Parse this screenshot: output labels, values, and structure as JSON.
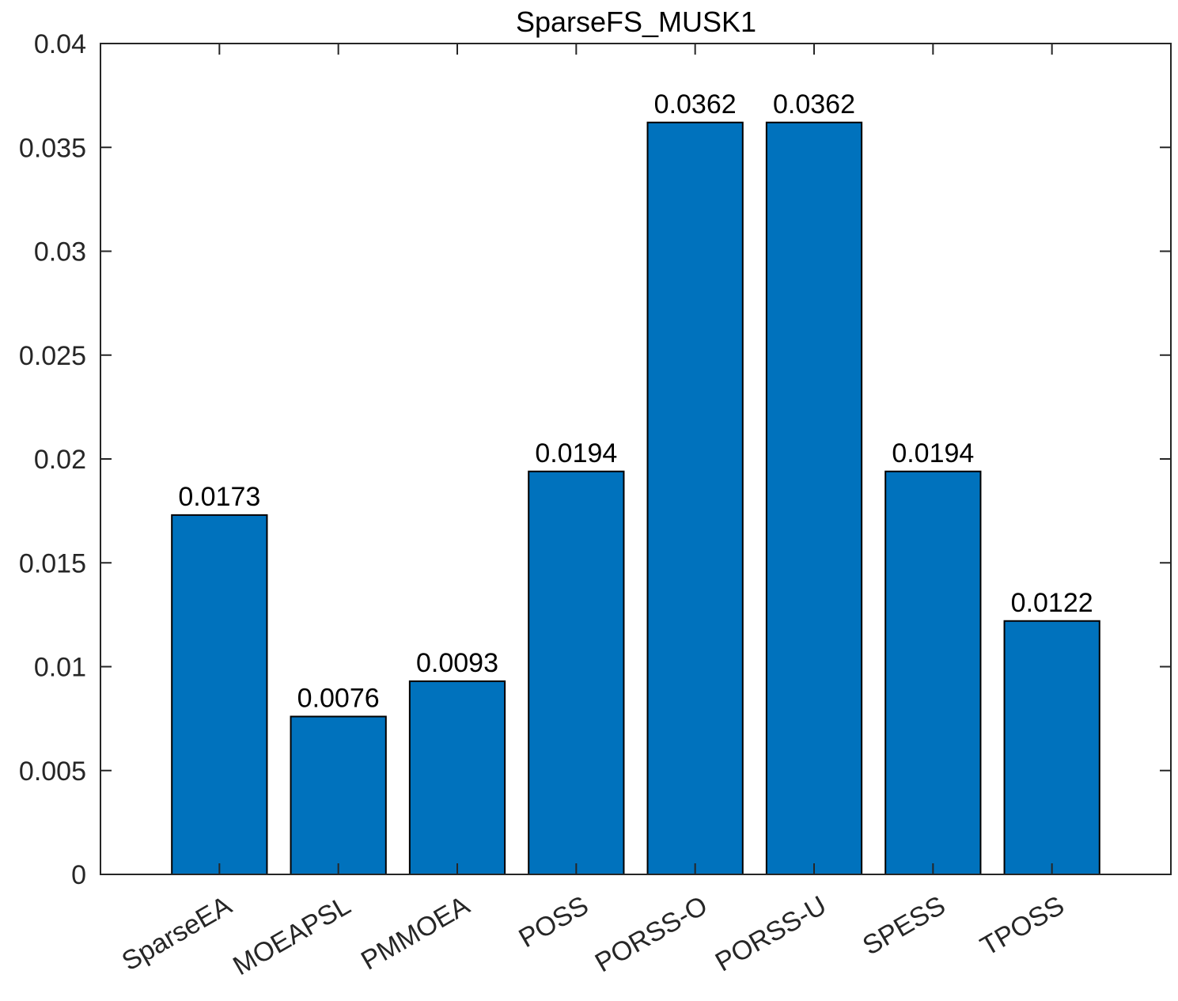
{
  "chart_data": {
    "type": "bar",
    "title": "SparseFS_MUSK1",
    "xlabel": "",
    "ylabel": "",
    "categories": [
      "SparseEA",
      "MOEAPSL",
      "PMMOEA",
      "POSS",
      "PORSS-O",
      "PORSS-U",
      "SPESS",
      "TPOSS"
    ],
    "values": [
      0.0173,
      0.0076,
      0.0093,
      0.0194,
      0.0362,
      0.0362,
      0.0194,
      0.0122
    ],
    "data_labels": [
      "0.0173",
      "0.0076",
      "0.0093",
      "0.0194",
      "0.0362",
      "0.0362",
      "0.0194",
      "0.0122"
    ],
    "ylim": [
      0,
      0.04
    ],
    "yticks": [
      0,
      0.005,
      0.01,
      0.015,
      0.02,
      0.025,
      0.03,
      0.035,
      0.04
    ],
    "ytick_labels": [
      "0",
      "0.005",
      "0.01",
      "0.015",
      "0.02",
      "0.025",
      "0.03",
      "0.035",
      "0.04"
    ],
    "xlim": [
      0,
      9
    ],
    "grid": false,
    "legend": "none",
    "bar_color": "#0072BD",
    "edge_color": "#000000",
    "axis_color": "#262626"
  }
}
